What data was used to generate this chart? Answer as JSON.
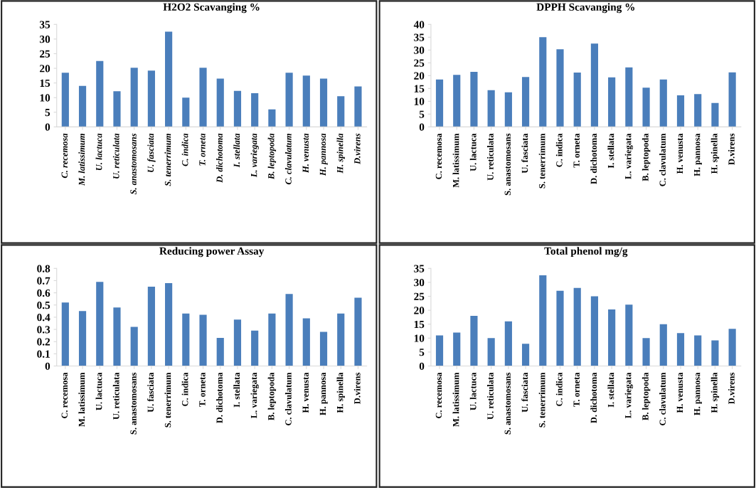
{
  "chart_data": [
    {
      "type": "bar",
      "title": "H2O2 Scavanging %",
      "color": "#4a7ebb",
      "ylim": [
        0,
        35
      ],
      "yticks": [
        0,
        5,
        10,
        15,
        20,
        25,
        30,
        35
      ],
      "grid": false,
      "categories": [
        "C. recemosa",
        "M. latissimum",
        "U. lactuca",
        "U. reticulata",
        "S. anastomosans",
        "U. fasciata",
        "S. tenerrimum",
        "C. indica",
        "T. orneta",
        "D. dichotoma",
        "I. stellata",
        "L. variegata",
        "B. leptopoda",
        "C. clavulatum",
        "H. venusta",
        "H. pannosa",
        "H. spinella",
        "D.virens"
      ],
      "values": [
        18.5,
        14,
        22.5,
        12.2,
        20.2,
        19.2,
        32.5,
        10,
        20.2,
        16.5,
        12.3,
        11.5,
        6,
        18.5,
        17.5,
        16.5,
        10.5,
        13.8
      ]
    },
    {
      "type": "bar",
      "title": "DPPH Scavanging %",
      "color": "#4a7ebb",
      "ylim": [
        0,
        40
      ],
      "yticks": [
        0,
        5,
        10,
        15,
        20,
        25,
        30,
        35,
        40
      ],
      "grid": false,
      "categories": [
        "C. recemosa",
        "M. latissimum",
        "U. lactuca",
        "U. reticulata",
        "S. anastomosans",
        "U. fasciata",
        "S. tenerrimum",
        "C. indica",
        "T. orneta",
        "D. dichotoma",
        "I. stellata",
        "L. variegata",
        "B. leptopoda",
        "C. clavulatum",
        "H. venusta",
        "H. pannosa",
        "H. spinella",
        "D.virens"
      ],
      "values": [
        18.5,
        20.3,
        21.5,
        14.3,
        13.5,
        19.5,
        35,
        30.3,
        21.2,
        32.5,
        19.3,
        23.2,
        15.3,
        18.5,
        12.3,
        12.8,
        9.3,
        21.3
      ]
    },
    {
      "type": "bar",
      "title": "Reducing power Assay",
      "color": "#4a7ebb",
      "ylim": [
        0,
        0.8
      ],
      "yticks": [
        0,
        0.1,
        0.2,
        0.3,
        0.4,
        0.5,
        0.6,
        0.7,
        0.8
      ],
      "grid": false,
      "categories": [
        "C. recemosa",
        "M. latissimum",
        "U. lactuca",
        "U. reticulata",
        "S. anastomosans",
        "U. fasciata",
        "S. tenerrimum",
        "C. indica",
        "T. orneta",
        "D. dichotoma",
        "I. stellata",
        "L. variegata",
        "B. leptopoda",
        "C. clavulatum",
        "H. venusta",
        "H. pannosa",
        "H. spinella",
        "D.virens"
      ],
      "values": [
        0.52,
        0.45,
        0.69,
        0.48,
        0.32,
        0.65,
        0.68,
        0.43,
        0.42,
        0.23,
        0.38,
        0.29,
        0.43,
        0.59,
        0.39,
        0.28,
        0.43,
        0.56
      ]
    },
    {
      "type": "bar",
      "title": "Total phenol mg/g",
      "color": "#4a7ebb",
      "ylim": [
        0,
        35
      ],
      "yticks": [
        0,
        5,
        10,
        15,
        20,
        25,
        30,
        35
      ],
      "grid": false,
      "categories": [
        "C. recemosa",
        "M. latissimum",
        "U. lactuca",
        "U. reticulata",
        "S. anastomosans",
        "U. fasciata",
        "S. tenerrimum",
        "C. indica",
        "T. orneta",
        "D. dichotoma",
        "I. stellata",
        "L. variegata",
        "B. leptopoda",
        "C. clavulatum",
        "H. venusta",
        "H. pannosa",
        "H. spinella",
        "D.virens"
      ],
      "values": [
        11,
        12,
        18,
        10,
        16,
        8,
        32.5,
        27,
        28,
        25,
        20.3,
        22,
        10,
        15,
        11.8,
        11,
        9.2,
        13.3
      ]
    }
  ]
}
